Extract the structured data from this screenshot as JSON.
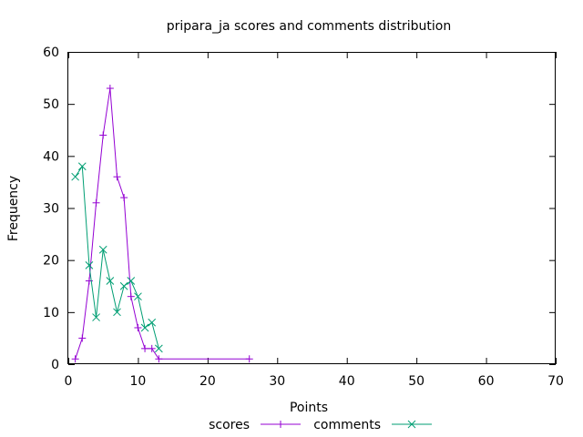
{
  "chart_data": {
    "type": "line",
    "title": "pripara_ja scores and comments distribution",
    "xlabel": "Points",
    "ylabel": "Frequency",
    "xlim": [
      0,
      70
    ],
    "ylim": [
      0,
      60
    ],
    "xticks": [
      0,
      10,
      20,
      30,
      40,
      50,
      60,
      70
    ],
    "yticks": [
      0,
      10,
      20,
      30,
      40,
      50,
      60
    ],
    "grid": false,
    "legend_position": "bottom-center",
    "series": [
      {
        "name": "scores",
        "color": "#9400d3",
        "marker": "plus",
        "x": [
          1,
          2,
          3,
          4,
          5,
          6,
          7,
          8,
          9,
          10,
          11,
          12,
          13,
          26
        ],
        "y": [
          1,
          5,
          16,
          31,
          44,
          53,
          36,
          32,
          13,
          7,
          3,
          3,
          1,
          1
        ]
      },
      {
        "name": "comments",
        "color": "#009e73",
        "marker": "cross",
        "x": [
          1,
          2,
          3,
          4,
          5,
          6,
          7,
          8,
          9,
          10,
          11,
          12,
          13
        ],
        "y": [
          36,
          38,
          19,
          9,
          22,
          16,
          10,
          15,
          16,
          13,
          7,
          8,
          3
        ]
      }
    ]
  }
}
